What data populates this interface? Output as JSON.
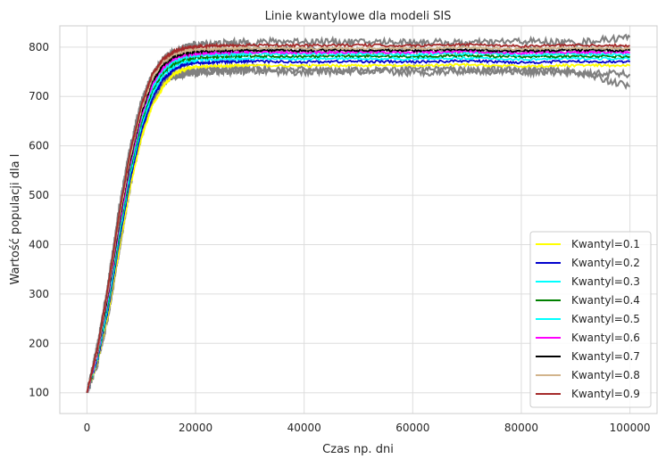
{
  "chart_data": {
    "type": "line",
    "title": "Linie kwantylowe dla modeli SIS",
    "xlabel": "Czas np. dni",
    "ylabel": "Wartość populacji dla I",
    "xlim": [
      -5000,
      105000
    ],
    "ylim": [
      58,
      843
    ],
    "x_ticks": [
      0,
      20000,
      40000,
      60000,
      80000,
      100000
    ],
    "x_tick_labels": [
      "0",
      "20000",
      "40000",
      "60000",
      "80000",
      "100000"
    ],
    "y_ticks": [
      100,
      200,
      300,
      400,
      500,
      600,
      700,
      800
    ],
    "y_tick_labels": [
      "100",
      "200",
      "300",
      "400",
      "500",
      "600",
      "700",
      "800"
    ],
    "grid": true,
    "legend_position": "lower-right",
    "background_trajectories": {
      "color": "#808080",
      "x": [
        0,
        2000,
        4000,
        6000,
        8000,
        10000,
        12000,
        14000,
        16000,
        18000,
        20000,
        25000,
        30000,
        40000,
        50000,
        60000,
        70000,
        80000,
        90000,
        100000
      ],
      "series": [
        [
          100,
          200,
          330,
          480,
          600,
          690,
          745,
          770,
          780,
          785,
          788,
          790,
          792,
          795,
          790,
          793,
          791,
          794,
          792,
          795
        ],
        [
          100,
          175,
          280,
          420,
          550,
          650,
          710,
          735,
          745,
          750,
          752,
          755,
          757,
          755,
          752,
          758,
          754,
          756,
          750,
          720
        ],
        [
          100,
          190,
          320,
          470,
          590,
          680,
          740,
          775,
          790,
          800,
          805,
          808,
          810,
          812,
          810,
          811,
          808,
          812,
          809,
          820
        ],
        [
          100,
          160,
          260,
          390,
          520,
          620,
          690,
          725,
          740,
          745,
          748,
          750,
          752,
          749,
          751,
          748,
          752,
          750,
          748,
          745
        ]
      ]
    },
    "x": [
      0,
      2000,
      4000,
      6000,
      8000,
      10000,
      12000,
      14000,
      16000,
      18000,
      20000,
      25000,
      30000,
      40000,
      50000,
      60000,
      70000,
      80000,
      90000,
      100000
    ],
    "series": [
      {
        "name": "Kwantyl=0.1",
        "color": "#ffff00",
        "values": [
          100,
          165,
          265,
          395,
          520,
          615,
          680,
          720,
          745,
          756,
          760,
          762,
          763,
          762,
          763,
          762,
          764,
          761,
          763,
          762
        ]
      },
      {
        "name": "Kwantyl=0.2",
        "color": "#0000cd",
        "values": [
          100,
          170,
          275,
          410,
          535,
          630,
          695,
          735,
          755,
          765,
          768,
          770,
          771,
          770,
          771,
          770,
          772,
          769,
          771,
          770
        ]
      },
      {
        "name": "Kwantyl=0.3",
        "color": "#00ffff",
        "values": [
          100,
          174,
          283,
          420,
          545,
          640,
          705,
          743,
          762,
          771,
          774,
          776,
          777,
          776,
          777,
          776,
          778,
          775,
          777,
          776
        ]
      },
      {
        "name": "Kwantyl=0.4",
        "color": "#008000",
        "values": [
          100,
          177,
          290,
          428,
          552,
          648,
          712,
          749,
          767,
          776,
          779,
          781,
          782,
          781,
          782,
          781,
          783,
          780,
          782,
          781
        ]
      },
      {
        "name": "Kwantyl=0.5",
        "color": "#00ffff",
        "values": [
          100,
          180,
          296,
          435,
          558,
          654,
          718,
          754,
          772,
          780,
          783,
          785,
          786,
          785,
          786,
          785,
          787,
          784,
          786,
          785
        ]
      },
      {
        "name": "Kwantyl=0.6",
        "color": "#ff00ff",
        "values": [
          100,
          183,
          302,
          442,
          565,
          660,
          724,
          759,
          776,
          784,
          787,
          789,
          790,
          789,
          790,
          789,
          791,
          788,
          790,
          789
        ]
      },
      {
        "name": "Kwantyl=0.7",
        "color": "#000000",
        "values": [
          100,
          186,
          308,
          449,
          572,
          666,
          730,
          764,
          780,
          788,
          791,
          793,
          794,
          793,
          794,
          793,
          795,
          792,
          794,
          793
        ]
      },
      {
        "name": "Kwantyl=0.8",
        "color": "#d2b48c",
        "values": [
          100,
          189,
          315,
          457,
          580,
          673,
          736,
          770,
          785,
          792,
          795,
          797,
          798,
          797,
          798,
          797,
          799,
          796,
          798,
          797
        ]
      },
      {
        "name": "Kwantyl=0.9",
        "color": "#a52a2a",
        "values": [
          100,
          193,
          323,
          466,
          588,
          681,
          743,
          776,
          791,
          798,
          801,
          803,
          804,
          803,
          804,
          803,
          805,
          802,
          804,
          803
        ]
      }
    ]
  }
}
